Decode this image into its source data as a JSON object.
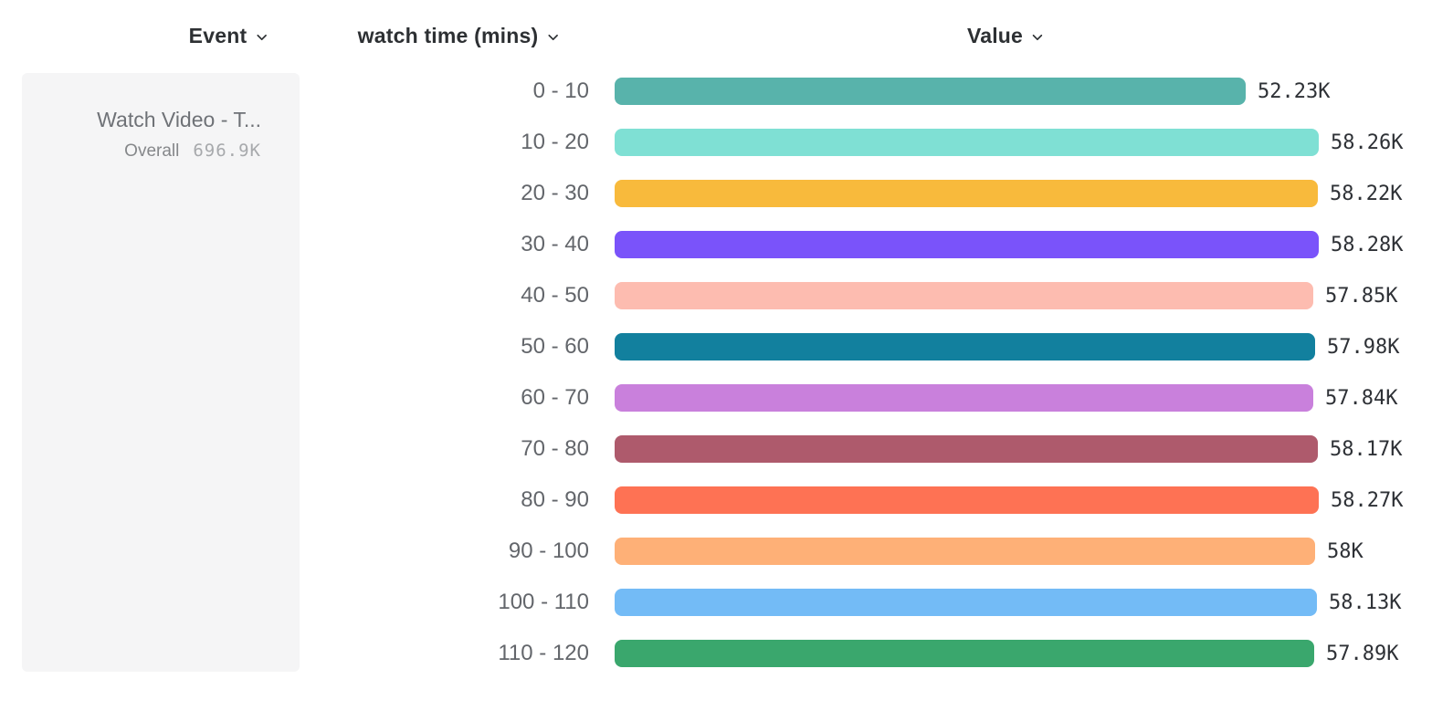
{
  "header": {
    "event": "Event",
    "breakdown": "watch time (mins)",
    "value": "Value"
  },
  "event_panel": {
    "event_name": "Watch Video - T...",
    "overall_label": "Overall",
    "overall_value": "696.9K"
  },
  "chart_data": {
    "type": "bar",
    "orientation": "horizontal",
    "title": "",
    "xlabel": "Value",
    "ylabel": "watch time (mins)",
    "xlim": [
      0,
      58280
    ],
    "grid": false,
    "legend": false,
    "categories": [
      "0 - 10",
      "10 - 20",
      "20 - 30",
      "30 - 40",
      "40 - 50",
      "50 - 60",
      "60 - 70",
      "70 - 80",
      "80 - 90",
      "90 - 100",
      "100 - 110",
      "110 - 120"
    ],
    "values": [
      52230,
      58260,
      58220,
      58280,
      57850,
      57980,
      57840,
      58170,
      58270,
      58000,
      58130,
      57890
    ],
    "value_labels": [
      "52.23K",
      "58.26K",
      "58.22K",
      "58.28K",
      "57.85K",
      "57.98K",
      "57.84K",
      "58.17K",
      "58.27K",
      "58K",
      "58.13K",
      "57.89K"
    ],
    "bar_colors": [
      "#58b3ab",
      "#7fe0d4",
      "#f8ba3c",
      "#7a53fa",
      "#fdbcb0",
      "#12809e",
      "#c980dc",
      "#ae5a6c",
      "#fe7254",
      "#feb077",
      "#73bbf6",
      "#3aa76d"
    ]
  },
  "colors": {
    "header_text": "#2d3033",
    "category_text": "#63666b",
    "value_text": "#2e3136",
    "panel_bg": "#f5f5f6"
  }
}
